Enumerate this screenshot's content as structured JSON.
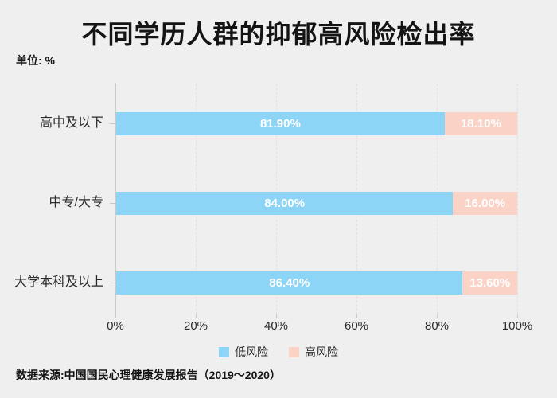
{
  "title": "不同学历人群的抑郁高风险检出率",
  "unit_label": "单位: %",
  "source": "数据来源:中国国民心理健康发展报告（2019～2020）",
  "colors": {
    "background": "#efefef",
    "low_risk": "#8dd5f6",
    "high_risk": "#fad2c6",
    "value_text": "#ffffff",
    "axis": "#c9c9c9",
    "grid": "#e2e1e1"
  },
  "legend": [
    {
      "label": "低风险",
      "color": "#8dd5f6"
    },
    {
      "label": "高风险",
      "color": "#fad2c6"
    }
  ],
  "chart_data": {
    "type": "bar",
    "orientation": "horizontal",
    "stacked": true,
    "title": "不同学历人群的抑郁高风险检出率",
    "unit": "%",
    "categories": [
      "高中及以下",
      "中专/大专",
      "大学本科及以上"
    ],
    "series": [
      {
        "name": "低风险",
        "color": "#8dd5f6",
        "values": [
          81.9,
          84.0,
          86.4
        ],
        "labels": [
          "81.90%",
          "84.00%",
          "86.40%"
        ]
      },
      {
        "name": "高风险",
        "color": "#fad2c6",
        "values": [
          18.1,
          16.0,
          13.6
        ],
        "labels": [
          "18.10%",
          "16.00%",
          "13.60%"
        ]
      }
    ],
    "x_ticks": [
      "0%",
      "20%",
      "40%",
      "60%",
      "80%",
      "100%"
    ],
    "xlim": [
      0,
      100
    ],
    "grid": "vertical-dashed",
    "legend_position": "bottom"
  }
}
